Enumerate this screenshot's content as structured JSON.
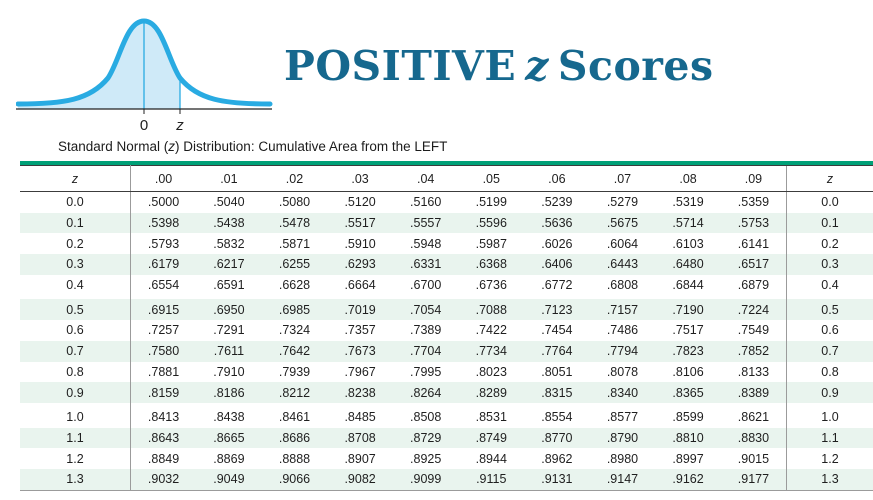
{
  "graphic": {
    "zero_label": "0",
    "z_label": "z",
    "curve_color": "#29abe2",
    "fill_color": "#cfeaf8"
  },
  "title": {
    "part1": "POSITIVE",
    "z": "z",
    "part2": "Scores",
    "color": "#16688e"
  },
  "subtitle": {
    "part1": "Standard Normal (",
    "z": "z",
    "part2": ") Distribution: Cumulative Area from the LEFT"
  },
  "table": {
    "accent_color": "#00a077",
    "alt_row_color": "#e9f4ee",
    "header": [
      "z",
      ".00",
      ".01",
      ".02",
      ".03",
      ".04",
      ".05",
      ".06",
      ".07",
      ".08",
      ".09",
      "z"
    ],
    "group_break_after": [
      "0.4",
      "0.9"
    ],
    "rows": [
      {
        "z": "0.0",
        "values": [
          ".5000",
          ".5040",
          ".5080",
          ".5120",
          ".5160",
          ".5199",
          ".5239",
          ".5279",
          ".5319",
          ".5359"
        ]
      },
      {
        "z": "0.1",
        "values": [
          ".5398",
          ".5438",
          ".5478",
          ".5517",
          ".5557",
          ".5596",
          ".5636",
          ".5675",
          ".5714",
          ".5753"
        ]
      },
      {
        "z": "0.2",
        "values": [
          ".5793",
          ".5832",
          ".5871",
          ".5910",
          ".5948",
          ".5987",
          ".6026",
          ".6064",
          ".6103",
          ".6141"
        ]
      },
      {
        "z": "0.3",
        "values": [
          ".6179",
          ".6217",
          ".6255",
          ".6293",
          ".6331",
          ".6368",
          ".6406",
          ".6443",
          ".6480",
          ".6517"
        ]
      },
      {
        "z": "0.4",
        "values": [
          ".6554",
          ".6591",
          ".6628",
          ".6664",
          ".6700",
          ".6736",
          ".6772",
          ".6808",
          ".6844",
          ".6879"
        ]
      },
      {
        "z": "0.5",
        "values": [
          ".6915",
          ".6950",
          ".6985",
          ".7019",
          ".7054",
          ".7088",
          ".7123",
          ".7157",
          ".7190",
          ".7224"
        ]
      },
      {
        "z": "0.6",
        "values": [
          ".7257",
          ".7291",
          ".7324",
          ".7357",
          ".7389",
          ".7422",
          ".7454",
          ".7486",
          ".7517",
          ".7549"
        ]
      },
      {
        "z": "0.7",
        "values": [
          ".7580",
          ".7611",
          ".7642",
          ".7673",
          ".7704",
          ".7734",
          ".7764",
          ".7794",
          ".7823",
          ".7852"
        ]
      },
      {
        "z": "0.8",
        "values": [
          ".7881",
          ".7910",
          ".7939",
          ".7967",
          ".7995",
          ".8023",
          ".8051",
          ".8078",
          ".8106",
          ".8133"
        ]
      },
      {
        "z": "0.9",
        "values": [
          ".8159",
          ".8186",
          ".8212",
          ".8238",
          ".8264",
          ".8289",
          ".8315",
          ".8340",
          ".8365",
          ".8389"
        ]
      },
      {
        "z": "1.0",
        "values": [
          ".8413",
          ".8438",
          ".8461",
          ".8485",
          ".8508",
          ".8531",
          ".8554",
          ".8577",
          ".8599",
          ".8621"
        ]
      },
      {
        "z": "1.1",
        "values": [
          ".8643",
          ".8665",
          ".8686",
          ".8708",
          ".8729",
          ".8749",
          ".8770",
          ".8790",
          ".8810",
          ".8830"
        ]
      },
      {
        "z": "1.2",
        "values": [
          ".8849",
          ".8869",
          ".8888",
          ".8907",
          ".8925",
          ".8944",
          ".8962",
          ".8980",
          ".8997",
          ".9015"
        ]
      },
      {
        "z": "1.3",
        "values": [
          ".9032",
          ".9049",
          ".9066",
          ".9082",
          ".9099",
          ".9115",
          ".9131",
          ".9147",
          ".9162",
          ".9177"
        ]
      }
    ]
  }
}
